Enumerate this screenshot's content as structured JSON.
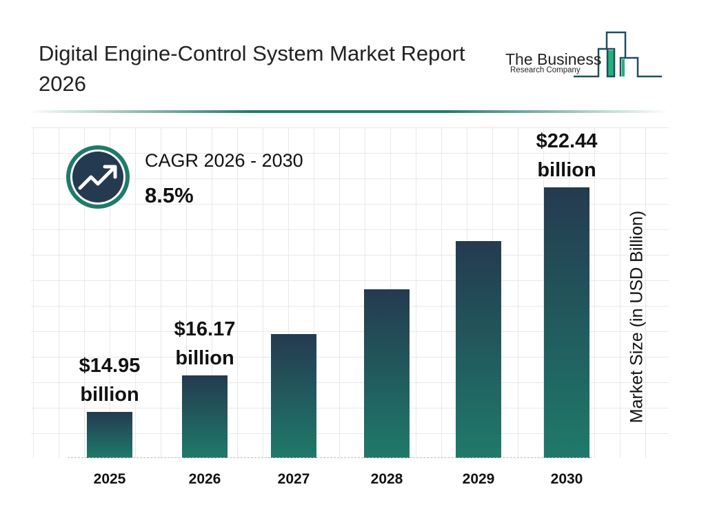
{
  "header": {
    "title": "Digital Engine-Control System Market Report 2026"
  },
  "logo": {
    "line1": "The Business",
    "line2": "Research Company",
    "colors": {
      "dark": "#1d4e5f",
      "accent": "#22b07d"
    }
  },
  "cagr": {
    "label": "CAGR 2026 - 2030",
    "value": "8.5%",
    "icon": "trending-up-icon"
  },
  "chart_data": {
    "type": "bar",
    "categories": [
      "2025",
      "2026",
      "2027",
      "2028",
      "2029",
      "2030"
    ],
    "values": [
      14.95,
      16.17,
      17.54,
      19.03,
      20.65,
      22.44
    ],
    "data_labels": [
      {
        "index": 0,
        "line1": "$14.95",
        "line2": "billion"
      },
      {
        "index": 1,
        "line1": "$16.17",
        "line2": "billion"
      },
      {
        "index": 5,
        "line1": "$22.44",
        "line2": "billion"
      }
    ],
    "ylabel": "Market Size (in USD Billion)",
    "xlabel": "",
    "grid": true,
    "colors": {
      "bar_top": "#243a50",
      "bar_bottom": "#1f7a6a"
    }
  }
}
